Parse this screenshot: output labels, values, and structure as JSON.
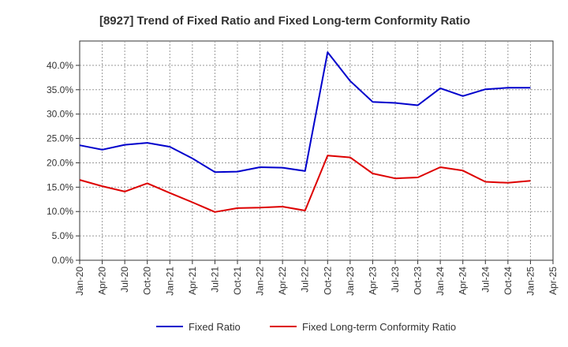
{
  "chart_data": {
    "type": "line",
    "title": "[8927]  Trend of Fixed Ratio and Fixed Long-term Conformity Ratio",
    "xlabel": "",
    "ylabel": "",
    "x": [
      "Jan-20",
      "Apr-20",
      "Jul-20",
      "Oct-20",
      "Jan-21",
      "Apr-21",
      "Jul-21",
      "Oct-21",
      "Jan-22",
      "Apr-22",
      "Jul-22",
      "Oct-22",
      "Jan-23",
      "Apr-23",
      "Jul-23",
      "Oct-23",
      "Jan-24",
      "Apr-24",
      "Jul-24",
      "Oct-24",
      "Jan-25",
      "Apr-25"
    ],
    "ylim": [
      0,
      45
    ],
    "yticks": [
      0,
      5,
      10,
      15,
      20,
      25,
      30,
      35,
      40
    ],
    "ytick_labels": [
      "0.0%",
      "5.0%",
      "10.0%",
      "15.0%",
      "20.0%",
      "25.0%",
      "30.0%",
      "35.0%",
      "40.0%"
    ],
    "grid": true,
    "legend_position": "bottom",
    "series": [
      {
        "name": "Fixed Ratio",
        "color": "#0000cc",
        "values": [
          23.6,
          22.7,
          23.7,
          24.1,
          23.3,
          20.9,
          18.1,
          18.2,
          19.1,
          19.0,
          18.3,
          42.7,
          36.8,
          32.5,
          32.3,
          31.8,
          35.3,
          33.7,
          35.1,
          35.4,
          35.4,
          null
        ]
      },
      {
        "name": "Fixed Long-term Conformity Ratio",
        "color": "#dd0000",
        "values": [
          16.5,
          15.2,
          14.1,
          15.8,
          13.8,
          11.9,
          9.9,
          10.7,
          10.8,
          11.0,
          10.2,
          21.5,
          21.1,
          17.8,
          16.8,
          17.0,
          19.1,
          18.4,
          16.1,
          15.9,
          16.3,
          null
        ]
      }
    ]
  }
}
